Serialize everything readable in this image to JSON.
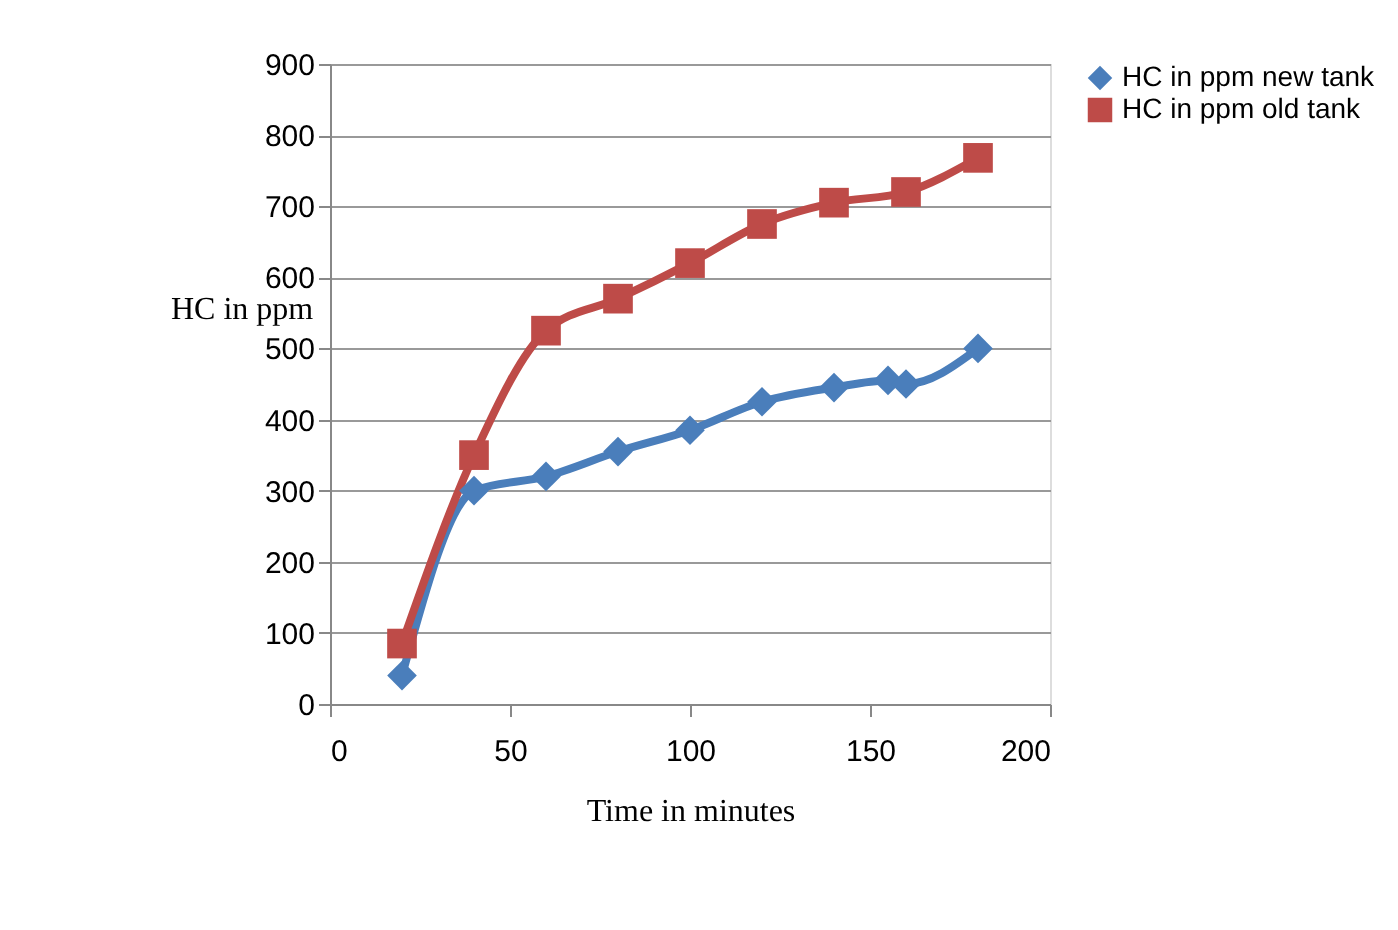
{
  "chart_data": {
    "type": "line",
    "xlabel": "Time in minutes",
    "ylabel": "HC in ppm",
    "xlim": [
      0,
      200
    ],
    "xticks": [
      0,
      50,
      100,
      150,
      200
    ],
    "ylim": [
      0,
      900
    ],
    "yticks": [
      0,
      100,
      200,
      300,
      400,
      500,
      600,
      700,
      800,
      900
    ],
    "grid": "y",
    "legend": "right",
    "series": [
      {
        "name": "HC in ppm new tank",
        "color": "#4a7ebb",
        "marker": "diamond",
        "x": [
          20,
          40,
          60,
          80,
          100,
          120,
          140,
          155,
          160,
          180
        ],
        "values": [
          40,
          300,
          320,
          355,
          385,
          425,
          445,
          455,
          450,
          500
        ]
      },
      {
        "name": "HC in ppm old tank",
        "color": "#be4b48",
        "marker": "square",
        "x": [
          20,
          40,
          60,
          80,
          100,
          120,
          140,
          160,
          180
        ],
        "values": [
          85,
          350,
          525,
          570,
          620,
          675,
          705,
          720,
          768
        ]
      }
    ]
  }
}
